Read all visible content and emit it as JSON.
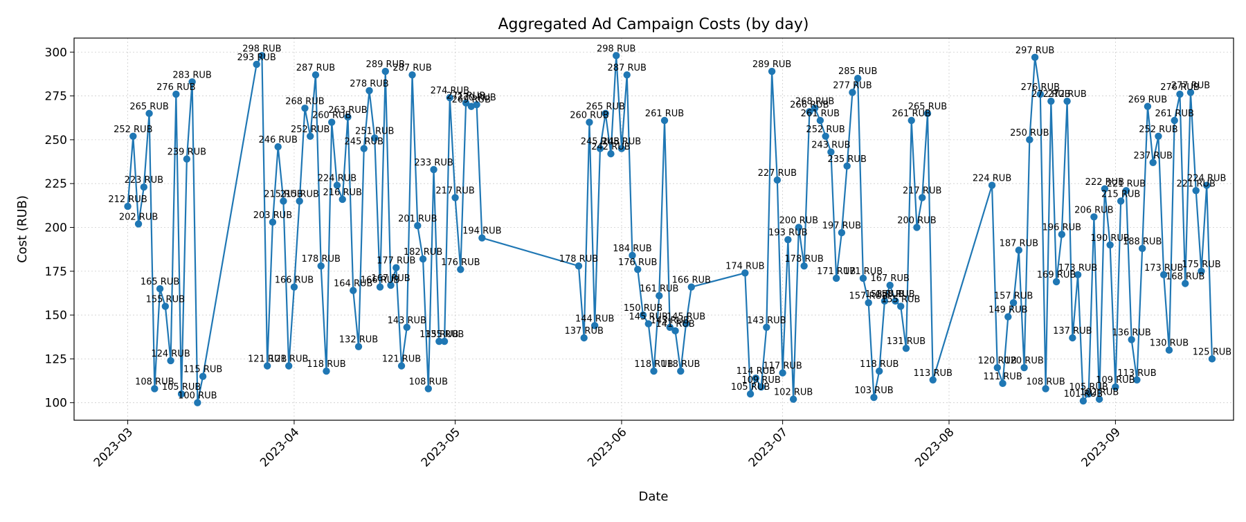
{
  "chart_data": {
    "type": "line",
    "title": "Aggregated Ad Campaign Costs (by day)",
    "xlabel": "Date",
    "ylabel": "Cost (RUB)",
    "grid": true,
    "legend": "none",
    "colors": {
      "series": "#1f77b4"
    },
    "value_suffix": " RUB",
    "xlim": [
      "2023-02-19",
      "2023-09-23"
    ],
    "ylim": [
      90,
      308
    ],
    "x_ticks": [
      {
        "date": "2023-03-01",
        "label": "2023-03"
      },
      {
        "date": "2023-04-01",
        "label": "2023-04"
      },
      {
        "date": "2023-05-01",
        "label": "2023-05"
      },
      {
        "date": "2023-06-01",
        "label": "2023-06"
      },
      {
        "date": "2023-07-01",
        "label": "2023-07"
      },
      {
        "date": "2023-08-01",
        "label": "2023-08"
      },
      {
        "date": "2023-09-01",
        "label": "2023-09"
      }
    ],
    "y_ticks": [
      100,
      125,
      150,
      175,
      200,
      225,
      250,
      275,
      300
    ],
    "series": [
      {
        "points": [
          [
            "2023-03-01",
            212
          ],
          [
            "2023-03-02",
            252
          ],
          [
            "2023-03-03",
            202
          ],
          [
            "2023-03-04",
            223
          ],
          [
            "2023-03-05",
            265
          ],
          [
            "2023-03-06",
            108
          ],
          [
            "2023-03-07",
            165
          ],
          [
            "2023-03-08",
            155
          ],
          [
            "2023-03-09",
            124
          ],
          [
            "2023-03-10",
            276
          ],
          [
            "2023-03-11",
            105
          ],
          [
            "2023-03-12",
            239
          ],
          [
            "2023-03-13",
            283
          ],
          [
            "2023-03-14",
            100
          ],
          [
            "2023-03-15",
            115
          ],
          [
            "2023-03-25",
            293
          ],
          [
            "2023-03-26",
            298
          ],
          [
            "2023-03-27",
            121
          ],
          [
            "2023-03-28",
            203
          ],
          [
            "2023-03-29",
            246
          ],
          [
            "2023-03-30",
            215
          ],
          [
            "2023-03-31",
            121
          ],
          [
            "2023-04-01",
            166
          ],
          [
            "2023-04-02",
            215
          ],
          [
            "2023-04-03",
            268
          ],
          [
            "2023-04-04",
            252
          ],
          [
            "2023-04-05",
            287
          ],
          [
            "2023-04-06",
            178
          ],
          [
            "2023-04-07",
            118
          ],
          [
            "2023-04-08",
            260
          ],
          [
            "2023-04-09",
            224
          ],
          [
            "2023-04-10",
            216
          ],
          [
            "2023-04-11",
            263
          ],
          [
            "2023-04-12",
            164
          ],
          [
            "2023-04-13",
            132
          ],
          [
            "2023-04-14",
            245
          ],
          [
            "2023-04-15",
            278
          ],
          [
            "2023-04-16",
            251
          ],
          [
            "2023-04-17",
            166
          ],
          [
            "2023-04-18",
            289
          ],
          [
            "2023-04-19",
            167
          ],
          [
            "2023-04-20",
            177
          ],
          [
            "2023-04-21",
            121
          ],
          [
            "2023-04-22",
            143
          ],
          [
            "2023-04-23",
            287
          ],
          [
            "2023-04-24",
            201
          ],
          [
            "2023-04-25",
            182
          ],
          [
            "2023-04-26",
            108
          ],
          [
            "2023-04-27",
            233
          ],
          [
            "2023-04-28",
            135
          ],
          [
            "2023-04-29",
            135
          ],
          [
            "2023-04-30",
            274
          ],
          [
            "2023-05-01",
            217
          ],
          [
            "2023-05-02",
            176
          ],
          [
            "2023-05-03",
            271
          ],
          [
            "2023-05-04",
            269
          ],
          [
            "2023-05-05",
            270
          ],
          [
            "2023-05-06",
            194
          ],
          [
            "2023-05-24",
            178
          ],
          [
            "2023-05-25",
            137
          ],
          [
            "2023-05-26",
            260
          ],
          [
            "2023-05-27",
            144
          ],
          [
            "2023-05-28",
            245
          ],
          [
            "2023-05-29",
            265
          ],
          [
            "2023-05-30",
            242
          ],
          [
            "2023-05-31",
            298
          ],
          [
            "2023-06-01",
            245
          ],
          [
            "2023-06-02",
            287
          ],
          [
            "2023-06-03",
            184
          ],
          [
            "2023-06-04",
            176
          ],
          [
            "2023-06-05",
            150
          ],
          [
            "2023-06-06",
            145
          ],
          [
            "2023-06-07",
            118
          ],
          [
            "2023-06-08",
            161
          ],
          [
            "2023-06-09",
            261
          ],
          [
            "2023-06-10",
            143
          ],
          [
            "2023-06-11",
            141
          ],
          [
            "2023-06-12",
            118
          ],
          [
            "2023-06-13",
            145
          ],
          [
            "2023-06-14",
            166
          ],
          [
            "2023-06-24",
            174
          ],
          [
            "2023-06-25",
            105
          ],
          [
            "2023-06-26",
            114
          ],
          [
            "2023-06-27",
            109
          ],
          [
            "2023-06-28",
            143
          ],
          [
            "2023-06-29",
            289
          ],
          [
            "2023-06-30",
            227
          ],
          [
            "2023-07-01",
            117
          ],
          [
            "2023-07-02",
            193
          ],
          [
            "2023-07-03",
            102
          ],
          [
            "2023-07-04",
            200
          ],
          [
            "2023-07-05",
            178
          ],
          [
            "2023-07-06",
            266
          ],
          [
            "2023-07-07",
            268
          ],
          [
            "2023-07-08",
            261
          ],
          [
            "2023-07-09",
            252
          ],
          [
            "2023-07-10",
            243
          ],
          [
            "2023-07-11",
            171
          ],
          [
            "2023-07-12",
            197
          ],
          [
            "2023-07-13",
            235
          ],
          [
            "2023-07-14",
            277
          ],
          [
            "2023-07-15",
            285
          ],
          [
            "2023-07-16",
            171
          ],
          [
            "2023-07-17",
            157
          ],
          [
            "2023-07-18",
            103
          ],
          [
            "2023-07-19",
            118
          ],
          [
            "2023-07-20",
            158
          ],
          [
            "2023-07-21",
            167
          ],
          [
            "2023-07-22",
            158
          ],
          [
            "2023-07-23",
            155
          ],
          [
            "2023-07-24",
            131
          ],
          [
            "2023-07-25",
            261
          ],
          [
            "2023-07-26",
            200
          ],
          [
            "2023-07-27",
            217
          ],
          [
            "2023-07-28",
            265
          ],
          [
            "2023-07-29",
            113
          ],
          [
            "2023-08-09",
            224
          ],
          [
            "2023-08-10",
            120
          ],
          [
            "2023-08-11",
            111
          ],
          [
            "2023-08-12",
            149
          ],
          [
            "2023-08-13",
            157
          ],
          [
            "2023-08-14",
            187
          ],
          [
            "2023-08-15",
            120
          ],
          [
            "2023-08-16",
            250
          ],
          [
            "2023-08-17",
            297
          ],
          [
            "2023-08-18",
            276
          ],
          [
            "2023-08-19",
            108
          ],
          [
            "2023-08-20",
            272
          ],
          [
            "2023-08-21",
            169
          ],
          [
            "2023-08-22",
            196
          ],
          [
            "2023-08-23",
            272
          ],
          [
            "2023-08-24",
            137
          ],
          [
            "2023-08-25",
            173
          ],
          [
            "2023-08-26",
            101
          ],
          [
            "2023-08-27",
            105
          ],
          [
            "2023-08-28",
            206
          ],
          [
            "2023-08-29",
            102
          ],
          [
            "2023-08-30",
            222
          ],
          [
            "2023-08-31",
            190
          ],
          [
            "2023-09-01",
            109
          ],
          [
            "2023-09-02",
            215
          ],
          [
            "2023-09-03",
            221
          ],
          [
            "2023-09-04",
            136
          ],
          [
            "2023-09-05",
            113
          ],
          [
            "2023-09-06",
            188
          ],
          [
            "2023-09-07",
            269
          ],
          [
            "2023-09-08",
            237
          ],
          [
            "2023-09-09",
            252
          ],
          [
            "2023-09-10",
            173
          ],
          [
            "2023-09-11",
            130
          ],
          [
            "2023-09-12",
            261
          ],
          [
            "2023-09-13",
            276
          ],
          [
            "2023-09-14",
            168
          ],
          [
            "2023-09-15",
            277
          ],
          [
            "2023-09-16",
            221
          ],
          [
            "2023-09-17",
            175
          ],
          [
            "2023-09-18",
            224
          ],
          [
            "2023-09-19",
            125
          ]
        ]
      }
    ]
  }
}
